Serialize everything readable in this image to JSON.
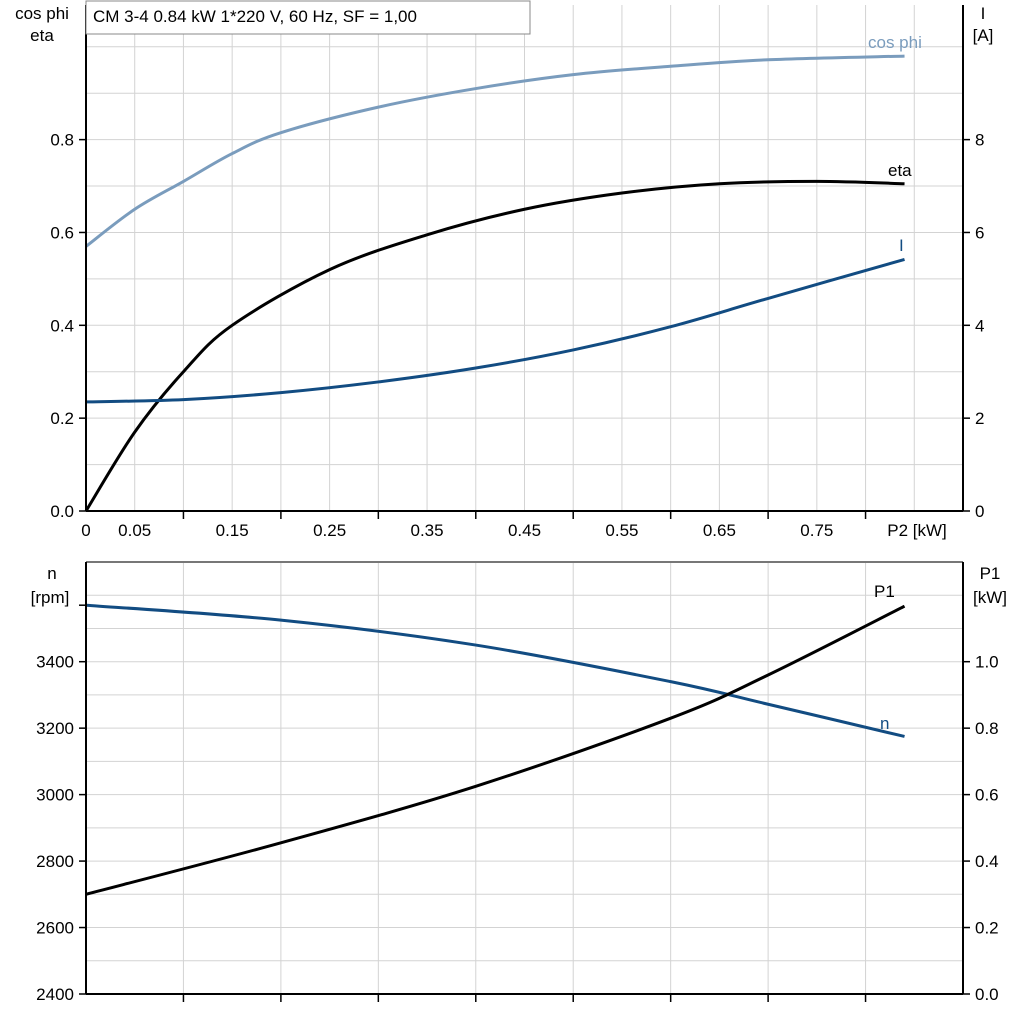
{
  "chart_data": [
    {
      "type": "line",
      "title": "CM 3-4   0.84 kW   1*220 V, 60 Hz, SF = 1,00",
      "xlabel": "P2 [kW]",
      "ylabel_left": [
        "cos phi",
        "eta"
      ],
      "ylabel_right": [
        "I",
        "[A]"
      ],
      "xlim": [
        0,
        0.9
      ],
      "ylim_left": [
        0,
        1.09
      ],
      "ylim_right": [
        0,
        10.9
      ],
      "x_tick_labels": [
        "0",
        "0.05",
        "0.15",
        "0.25",
        "0.35",
        "0.45",
        "0.55",
        "0.65",
        "0.75"
      ],
      "y_left_tick_labels": [
        "0.0",
        "0.2",
        "0.4",
        "0.6",
        "0.8"
      ],
      "y_right_tick_labels": [
        "0",
        "2",
        "4",
        "6",
        "8"
      ],
      "grid": true,
      "series": [
        {
          "name": "cos phi",
          "axis": "left",
          "color": "#7a9cbd",
          "x": [
            0,
            0.05,
            0.1,
            0.15,
            0.2,
            0.3,
            0.4,
            0.5,
            0.6,
            0.7,
            0.84
          ],
          "y": [
            0.57,
            0.65,
            0.71,
            0.77,
            0.815,
            0.87,
            0.91,
            0.94,
            0.958,
            0.972,
            0.98
          ]
        },
        {
          "name": "eta",
          "axis": "left",
          "color": "#000000",
          "x": [
            0,
            0.05,
            0.1,
            0.15,
            0.25,
            0.35,
            0.45,
            0.55,
            0.65,
            0.75,
            0.84
          ],
          "y": [
            0,
            0.17,
            0.3,
            0.4,
            0.52,
            0.595,
            0.65,
            0.685,
            0.705,
            0.71,
            0.705
          ]
        },
        {
          "name": "I",
          "axis": "right",
          "color": "#124c82",
          "x": [
            0,
            0.1,
            0.2,
            0.3,
            0.4,
            0.5,
            0.6,
            0.7,
            0.84
          ],
          "y": [
            2.35,
            2.4,
            2.55,
            2.78,
            3.08,
            3.47,
            3.97,
            4.58,
            5.42
          ]
        }
      ]
    },
    {
      "type": "line",
      "ylabel_left": [
        "n",
        "[rpm]"
      ],
      "ylabel_right": [
        "P1",
        "[kW]"
      ],
      "xlim": [
        0,
        0.9
      ],
      "ylim_left": [
        2400,
        3700
      ],
      "ylim_right": [
        0,
        1.3
      ],
      "y_left_tick_labels": [
        "2400",
        "2600",
        "2800",
        "3000",
        "3200",
        "3400"
      ],
      "y_right_tick_labels": [
        "0.0",
        "0.2",
        "0.4",
        "0.6",
        "0.8",
        "1.0"
      ],
      "grid": true,
      "series": [
        {
          "name": "n",
          "axis": "left",
          "color": "#124c82",
          "x": [
            0,
            0.2,
            0.4,
            0.6,
            0.7,
            0.84
          ],
          "y": [
            3570,
            3525,
            3450,
            3340,
            3272,
            3175
          ]
        },
        {
          "name": "P1",
          "axis": "right",
          "color": "#000000",
          "x": [
            0,
            0.2,
            0.4,
            0.6,
            0.7,
            0.84
          ],
          "y": [
            0.3,
            0.455,
            0.625,
            0.83,
            0.96,
            1.167
          ]
        }
      ]
    }
  ]
}
